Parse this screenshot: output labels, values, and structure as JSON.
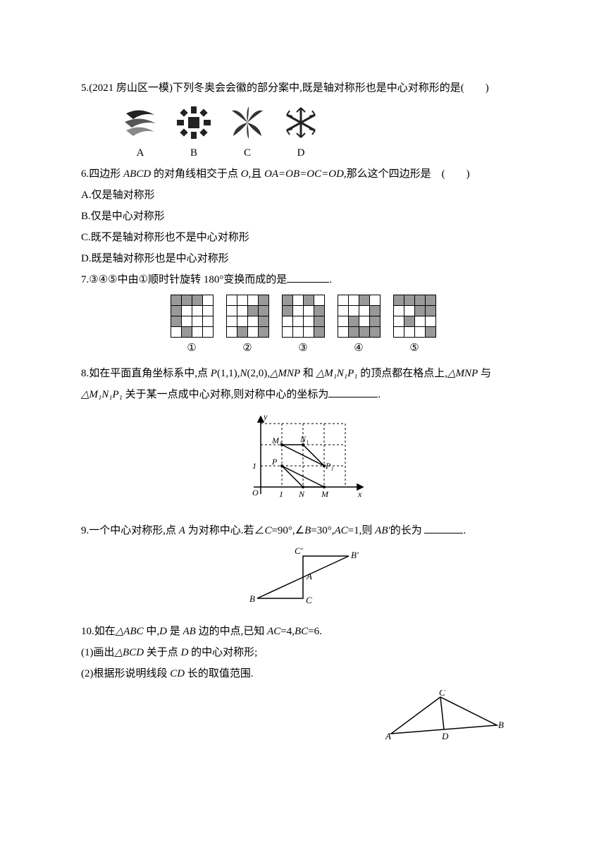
{
  "q5": {
    "text": "5.(2021 房山区一模)下列冬奥会会徽的部分案中,既是轴对称形也是中心对称形的是(  )",
    "labels": [
      "A",
      "B",
      "C",
      "D"
    ]
  },
  "q6": {
    "stem_pre": "6.四边形 ",
    "abcd": "ABCD",
    "stem_mid": " 的对角线相交于点 ",
    "O": "O",
    "stem_mid2": ",且 ",
    "eq": "OA=OB=OC=OD",
    "stem_post": ",那么这个四边形是 (  )",
    "a": "A.仅是轴对称形",
    "b": "B.仅是中心对称形",
    "c": "C.既不是轴对称形也不是中心对称形",
    "d": "D.既是轴对称形也是中心对称形"
  },
  "q7": {
    "pre": "7.",
    "circled_nums": "③④⑤",
    "mid1": "中由",
    "one": "①",
    "mid2": "顺时针旋转 180°变换而成的是",
    "blank": "",
    "period": ".",
    "labels": [
      "①",
      "②",
      "③",
      "④",
      "⑤"
    ],
    "shaded": {
      "g1": [
        [
          0,
          0
        ],
        [
          0,
          1
        ],
        [
          0,
          2
        ],
        [
          1,
          0
        ],
        [
          2,
          0
        ],
        [
          3,
          1
        ]
      ],
      "g2": [
        [
          0,
          3
        ],
        [
          1,
          3
        ],
        [
          1,
          2
        ],
        [
          2,
          3
        ],
        [
          3,
          3
        ],
        [
          3,
          1
        ]
      ],
      "g3": [
        [
          0,
          0
        ],
        [
          0,
          2
        ],
        [
          1,
          0
        ],
        [
          1,
          3
        ],
        [
          2,
          3
        ],
        [
          3,
          3
        ]
      ],
      "g4": [
        [
          0,
          2
        ],
        [
          1,
          3
        ],
        [
          2,
          1
        ],
        [
          2,
          3
        ],
        [
          3,
          1
        ],
        [
          3,
          2
        ],
        [
          3,
          3
        ]
      ],
      "g5": [
        [
          0,
          0
        ],
        [
          0,
          1
        ],
        [
          0,
          2
        ],
        [
          0,
          3
        ],
        [
          1,
          2
        ],
        [
          1,
          3
        ],
        [
          2,
          1
        ],
        [
          3,
          3
        ]
      ]
    }
  },
  "q8": {
    "pre": "8.如在平面直角坐标系中,点 ",
    "P": "P",
    "p_coord": "(1,1),",
    "N": "N",
    "n_coord": "(2,0),",
    "tri1": "△MNP",
    "and": " 和 ",
    "tri2": "△M₁N₁P₁",
    "mid": " 的顶点都在格点上,",
    "tri1b": "△MNP",
    "with": " 与 ",
    "tri2b": "△M₁N₁P₁",
    "post": " 关于某一点成中心对称,则对称中心的坐标为",
    "period": ".",
    "axis_x": "x",
    "axis_y": "y",
    "label_O": "O",
    "label_1": "1",
    "label_M": "M",
    "label_N": "N",
    "label_P": "P",
    "label_M1": "M₁",
    "label_N1": "N₁",
    "label_P1": "P₁"
  },
  "q9": {
    "pre": "9.一个中心对称形,点 ",
    "A": "A",
    "mid1": " 为对称中心.若∠",
    "C": "C",
    "eq1": "=90°,∠",
    "B": "B",
    "eq2": "=30°,",
    "AC": "AC",
    "eq3": "=1,则 ",
    "ABp": "AB'",
    "post": "的长为 ",
    "period": ".",
    "labels": {
      "A": "A",
      "B": "B",
      "C": "C",
      "Bp": "B'",
      "Cp": "C'"
    }
  },
  "q10": {
    "pre": "10.如在",
    "tri": "△ABC",
    "mid1": " 中,",
    "D": "D",
    "mid2": " 是 ",
    "AB": "AB",
    "mid3": " 边的中点,已知 ",
    "AC": "AC",
    "eq1": "=4,",
    "BC": "BC",
    "eq2": "=6.",
    "p1_pre": "(1)画出",
    "p1_tri": "△BCD",
    "p1_mid": " 关于点 ",
    "p1_D": "D",
    "p1_post": " 的中心对称形;",
    "p2_pre": "(2)根据形说明线段 ",
    "p2_CD": "CD",
    "p2_post": " 长的取值范围.",
    "labels": {
      "A": "A",
      "B": "B",
      "C": "C",
      "D": "D"
    }
  }
}
